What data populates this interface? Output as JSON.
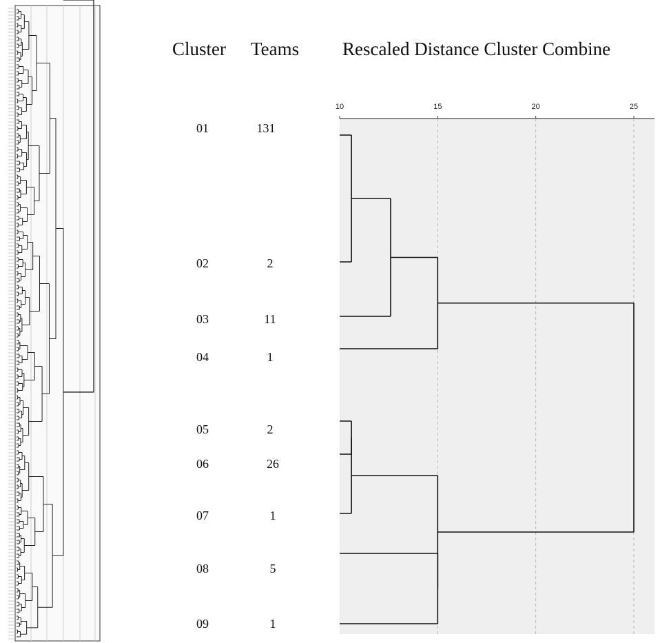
{
  "headers": {
    "cluster": "Cluster",
    "teams": "Teams",
    "distance": "Rescaled Distance Cluster Combine"
  },
  "axis": {
    "ticks": [
      "10",
      "15",
      "20",
      "25"
    ],
    "tick_values": [
      10,
      15,
      20,
      25
    ],
    "min": 10,
    "max": 25
  },
  "clusters": [
    {
      "id": "01",
      "teams": "131"
    },
    {
      "id": "02",
      "teams": "2"
    },
    {
      "id": "03",
      "teams": "11"
    },
    {
      "id": "04",
      "teams": "1"
    },
    {
      "id": "05",
      "teams": "2"
    },
    {
      "id": "06",
      "teams": "26"
    },
    {
      "id": "07",
      "teams": "1"
    },
    {
      "id": "08",
      "teams": "5"
    },
    {
      "id": "09",
      "teams": "1"
    }
  ],
  "colors": {
    "plot_bg": "#efefef",
    "line": "#111111",
    "grid": "#b5b5b5"
  }
}
